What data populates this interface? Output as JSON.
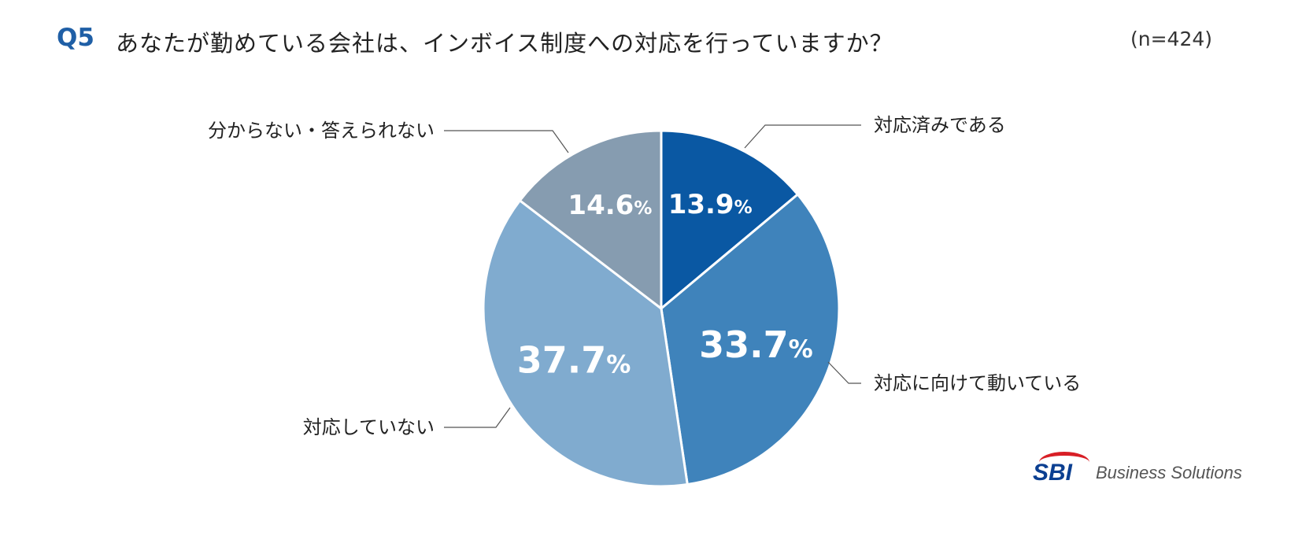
{
  "question": {
    "number": "Q5",
    "text": "あなたが勤めている会社は、インボイス制度への対応を行っていますか？",
    "sample_size": "(n=424)"
  },
  "chart_data": {
    "type": "pie",
    "start_angle_deg": 0,
    "direction": "clockwise",
    "slices": [
      {
        "label": "対応済みである",
        "value": 13.9,
        "display": "13.9",
        "color": "#0a58a3"
      },
      {
        "label": "対応に向けて動いている",
        "value": 33.7,
        "display": "33.7",
        "color": "#3f83bb"
      },
      {
        "label": "対応していない",
        "value": 37.7,
        "display": "37.7",
        "color": "#80abcf"
      },
      {
        "label": "分からない・答えられない",
        "value": 14.6,
        "display": "14.6",
        "color": "#869cb0"
      }
    ],
    "unit": "%"
  },
  "logo": {
    "mark": "SBI",
    "text": "Business Solutions"
  }
}
